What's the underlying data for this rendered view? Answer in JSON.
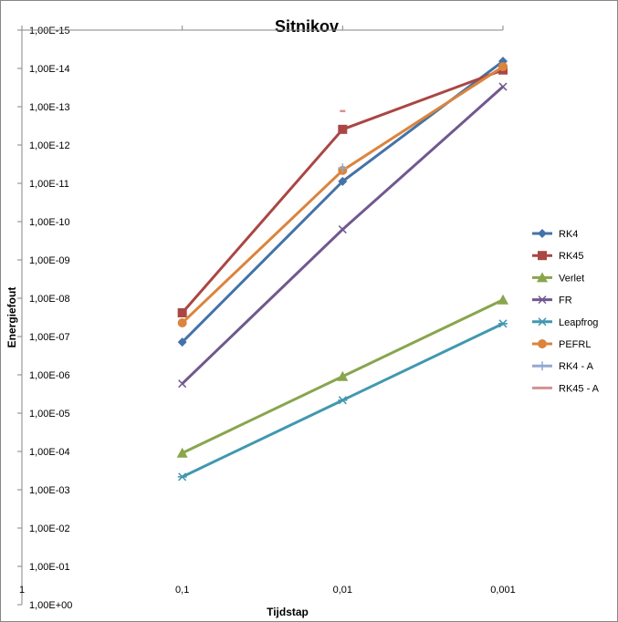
{
  "chart_data": {
    "type": "line",
    "title": "Sitnikov",
    "xlabel": "Tijdstap",
    "ylabel": "Energiefout",
    "x_ticks": [
      "1",
      "0,1",
      "0,01",
      "0,001"
    ],
    "x_scale": "log, reversed",
    "xlim": [
      1,
      0.001
    ],
    "y_scale": "log, reversed",
    "y_ticks": [
      "1,00E-15",
      "1,00E-14",
      "1,00E-13",
      "1,00E-12",
      "1,00E-11",
      "1,00E-10",
      "1,00E-09",
      "1,00E-08",
      "1,00E-07",
      "1,00E-06",
      "1,00E-05",
      "1,00E-04",
      "1,00E-03",
      "1,00E-02",
      "1,00E-01",
      "1,00E+00"
    ],
    "ylim": [
      1e-15,
      1
    ],
    "grid": false,
    "legend_position": "right",
    "series": [
      {
        "name": "RK4",
        "color": "#4572A7",
        "marker": "diamond",
        "x": [
          0.1,
          0.01,
          0.001
        ],
        "y": [
          1.4e-07,
          8.9e-12,
          6.5e-15
        ]
      },
      {
        "name": "RK45",
        "color": "#AA4643",
        "marker": "square",
        "x": [
          0.1,
          0.01,
          0.001
        ],
        "y": [
          2.4e-08,
          3.9e-13,
          1.1e-14
        ]
      },
      {
        "name": "Verlet",
        "color": "#89A54E",
        "marker": "triangle",
        "x": [
          0.1,
          0.01,
          0.001
        ],
        "y": [
          0.00011,
          1.1e-06,
          1.1e-08
        ]
      },
      {
        "name": "FR",
        "color": "#71588F",
        "marker": "x",
        "x": [
          0.1,
          0.01,
          0.001
        ],
        "y": [
          1.7e-06,
          1.6e-10,
          3e-14
        ]
      },
      {
        "name": "Leapfrog",
        "color": "#4198AF",
        "marker": "star",
        "x": [
          0.1,
          0.01,
          0.001
        ],
        "y": [
          0.00046,
          4.6e-06,
          4.6e-08
        ]
      },
      {
        "name": "PEFRL",
        "color": "#DB843D",
        "marker": "circle",
        "x": [
          0.1,
          0.01,
          0.001
        ],
        "y": [
          4.4e-08,
          4.6e-12,
          9e-15
        ]
      },
      {
        "name": "RK4 - A",
        "color": "#93A9CF",
        "marker": "plus",
        "x": [
          0.01
        ],
        "y": [
          4e-12
        ]
      },
      {
        "name": "RK45 - A",
        "color": "#D19392",
        "marker": "dash",
        "x": [
          0.01
        ],
        "y": [
          1.3e-13
        ]
      }
    ]
  }
}
